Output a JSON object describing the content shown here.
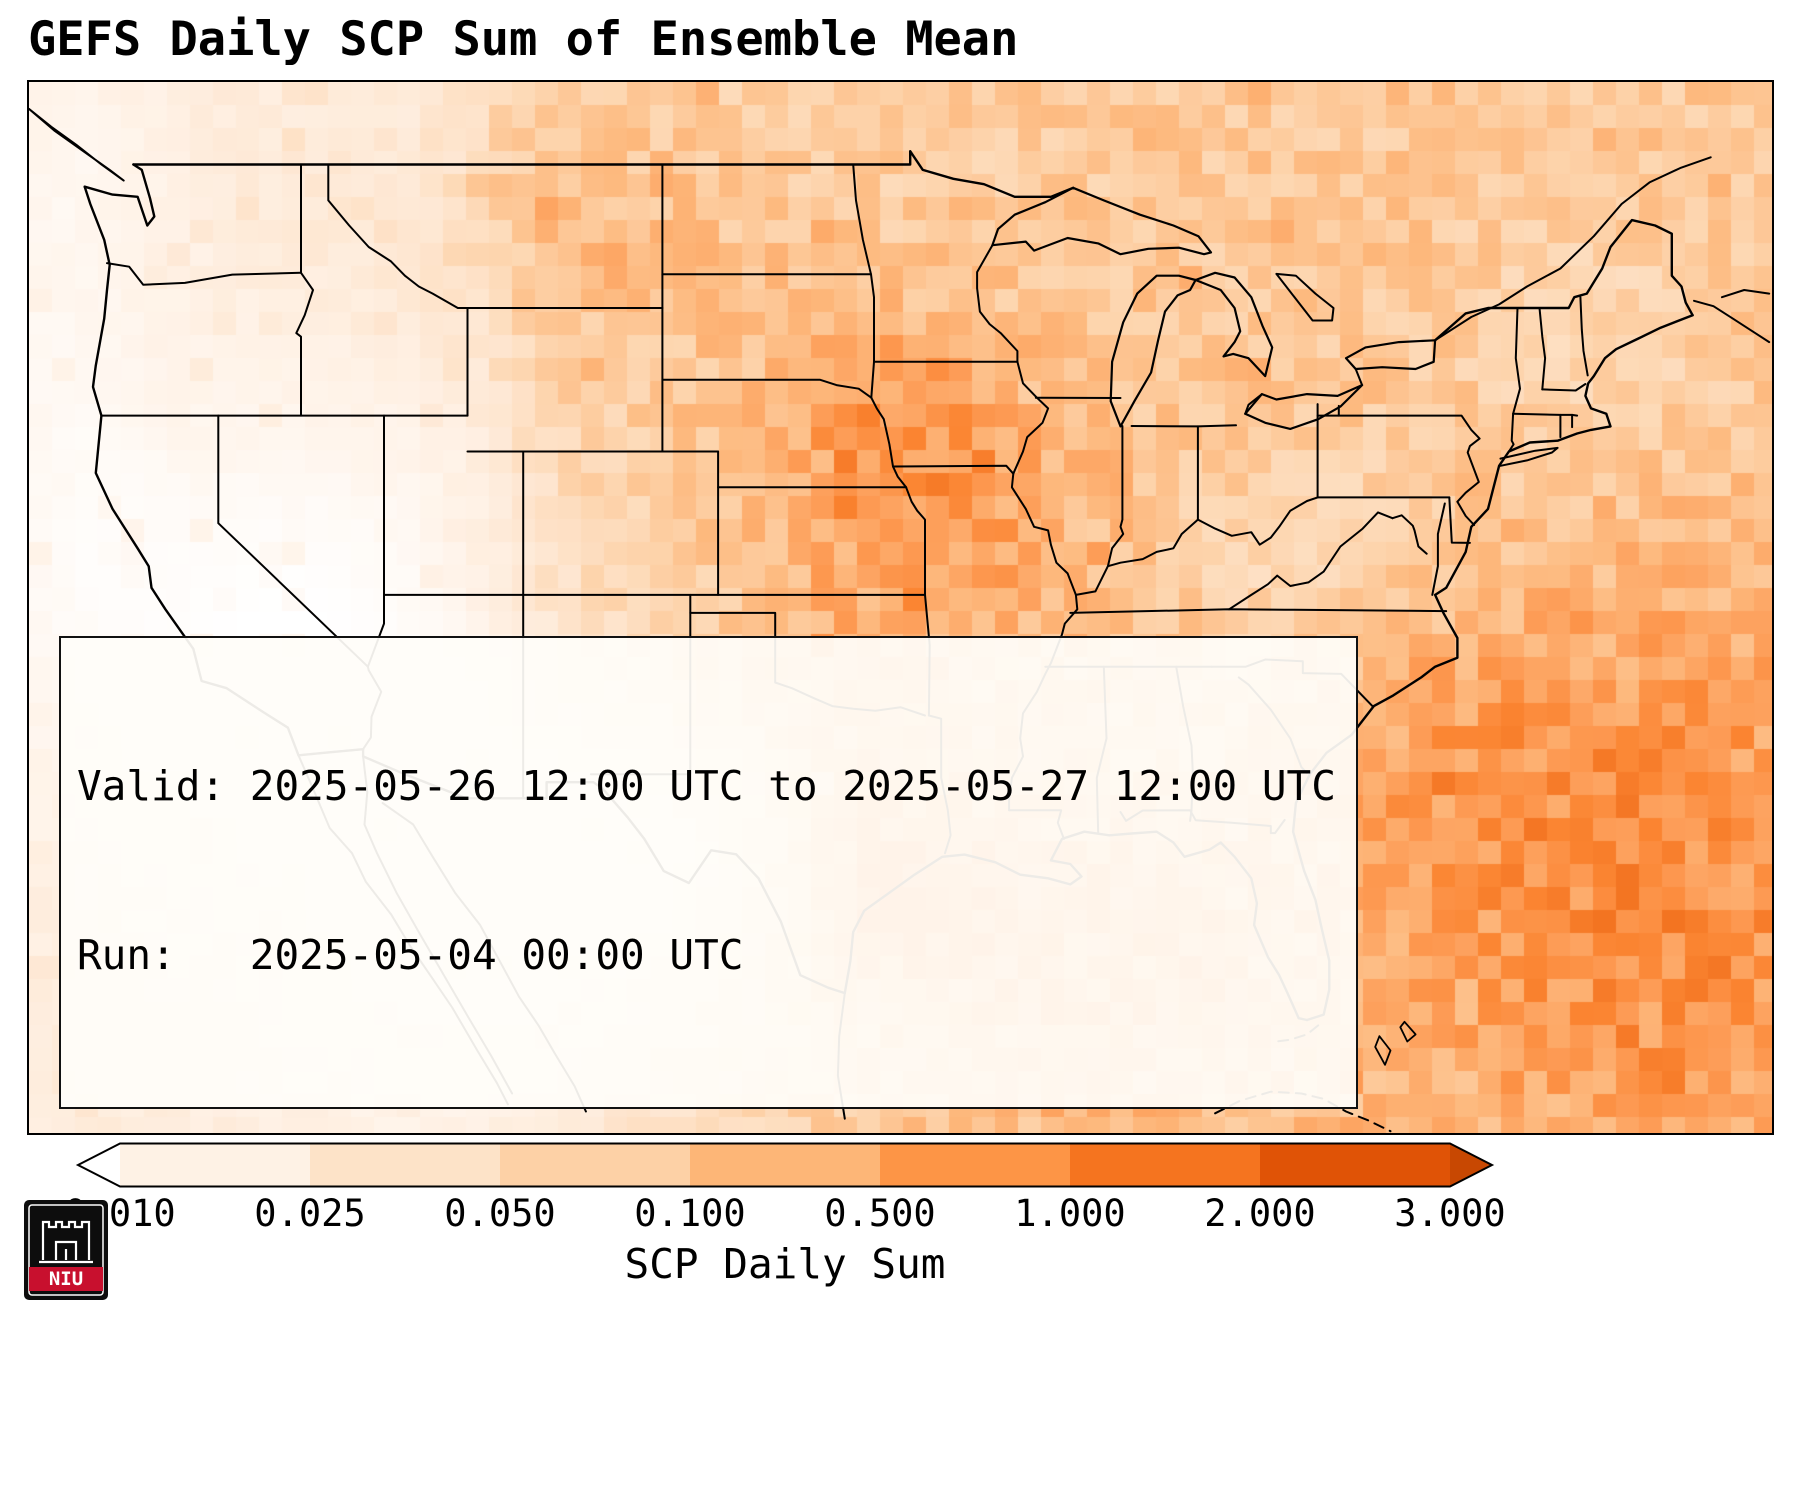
{
  "title": "GEFS Daily SCP Sum of Ensemble Mean",
  "info_box": {
    "line1": "Valid: 2025-05-26 12:00 UTC to 2025-05-27 12:00 UTC",
    "line2": "Run:   2025-05-04 00:00 UTC"
  },
  "colorbar": {
    "label": "SCP Daily Sum",
    "tick_labels": [
      "0.010",
      "0.025",
      "0.050",
      "0.100",
      "0.500",
      "1.000",
      "2.000",
      "3.000"
    ],
    "segment_colors": [
      "#fef2e5",
      "#fde3c8",
      "#fdd1a6",
      "#fdb677",
      "#fd9546",
      "#f5741f",
      "#e05306"
    ],
    "extend_low_color": "#ffffff",
    "extend_high_color": "#c84802",
    "colormap_stops": [
      [
        0,
        "#ffffff"
      ],
      [
        0.06,
        "#fff5ec"
      ],
      [
        0.18,
        "#fee8d4"
      ],
      [
        0.32,
        "#fdd5ae"
      ],
      [
        0.46,
        "#fdb97e"
      ],
      [
        0.6,
        "#fd9c56"
      ],
      [
        0.72,
        "#fb8532"
      ],
      [
        0.84,
        "#f1701e"
      ],
      [
        1,
        "#d94801"
      ]
    ]
  },
  "logo": {
    "text": "NIU",
    "band_color": "#c8102e",
    "bg_color": "#0d0d0d"
  },
  "chart_data": {
    "type": "heatmap",
    "title": "GEFS Daily SCP Sum of Ensemble Mean",
    "colorbar_label": "SCP Daily Sum",
    "colorbar_ticks": [
      0.01,
      0.025,
      0.05,
      0.1,
      0.5,
      1.0,
      2.0,
      3.0
    ],
    "colorbar_extend": "both",
    "colormap": "Oranges",
    "valid_start": "2025-05-26 12:00 UTC",
    "valid_end": "2025-05-27 12:00 UTC",
    "run": "2025-05-04 00:00 UTC"
  }
}
